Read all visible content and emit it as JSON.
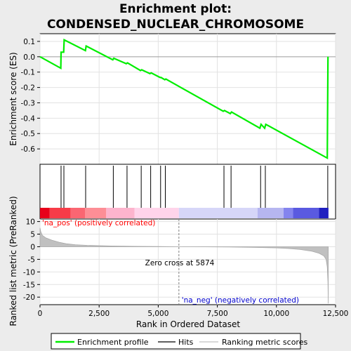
{
  "title_line1": "Enrichment plot:",
  "title_line2": "CONDENSED_NUCLEAR_CHROMOSOME",
  "colors": {
    "enrichment_line": "#00ee00",
    "hits": "#000000",
    "metric_fill": "#c0c0c0",
    "zero_line": "#808080",
    "pos_label": "#ff0000",
    "neg_label": "#0000cc"
  },
  "chart_data": [
    {
      "type": "line",
      "name": "enrichment-profile",
      "ylabel": "Enrichment score (ES)",
      "xlim": [
        0,
        12500
      ],
      "ylim": [
        -0.7,
        0.15
      ],
      "yticks": [
        "0.1",
        "0.0",
        "-0.1",
        "-0.2",
        "-0.3",
        "-0.4",
        "-0.5",
        "-0.6"
      ],
      "ytick_values": [
        0.1,
        0.0,
        -0.1,
        -0.2,
        -0.3,
        -0.4,
        -0.5,
        -0.6
      ],
      "x": [
        0,
        880,
        890,
        960,
        1000,
        1020,
        1920,
        1950,
        3080,
        3120,
        3650,
        3700,
        4250,
        4300,
        4650,
        4700,
        5080,
        5120,
        5280,
        5320,
        7750,
        7800,
        8050,
        8100,
        9300,
        9350,
        9500,
        9550,
        12150,
        12180
      ],
      "y": [
        0.0,
        -0.075,
        0.03,
        0.03,
        0.03,
        0.11,
        0.04,
        0.07,
        -0.02,
        -0.01,
        -0.045,
        -0.04,
        -0.09,
        -0.085,
        -0.11,
        -0.105,
        -0.135,
        -0.135,
        -0.15,
        -0.145,
        -0.355,
        -0.35,
        -0.37,
        -0.36,
        -0.465,
        -0.44,
        -0.465,
        -0.44,
        -0.66,
        0.0
      ],
      "grid": true
    },
    {
      "type": "scatter",
      "name": "hits",
      "x": [
        890,
        1010,
        1930,
        3100,
        3680,
        4280,
        4680,
        5100,
        5300,
        7780,
        8080,
        9330,
        9530,
        12170
      ]
    },
    {
      "type": "area",
      "name": "ranking-metric-scores",
      "xlabel": "Rank in Ordered Dataset",
      "ylabel": "Ranked list metric (PreRanked)",
      "xlim": [
        0,
        12500
      ],
      "ylim": [
        -23,
        11
      ],
      "yticks": [
        "10",
        "5",
        "0",
        "-5",
        "-10",
        "-15",
        "-20"
      ],
      "ytick_values": [
        10,
        5,
        0,
        -5,
        -10,
        -15,
        -20
      ],
      "xticks": [
        "0",
        "2,500",
        "5,000",
        "7,500",
        "10,000",
        "12,500"
      ],
      "xtick_values": [
        0,
        2500,
        5000,
        7500,
        10000,
        12500
      ],
      "x": [
        0,
        30,
        100,
        250,
        500,
        800,
        1100,
        1500,
        2000,
        3000,
        4000,
        5000,
        5874,
        7000,
        8000,
        9000,
        10000,
        10500,
        11000,
        11500,
        11800,
        12000,
        12100,
        12150,
        12180,
        12190
      ],
      "y": [
        7.5,
        6.0,
        4.5,
        3.5,
        2.6,
        1.8,
        1.2,
        0.8,
        0.55,
        0.3,
        0.15,
        0.07,
        0.0,
        -0.05,
        -0.12,
        -0.25,
        -0.45,
        -0.7,
        -1.1,
        -1.8,
        -2.6,
        -3.6,
        -5.0,
        -8.0,
        -14.0,
        -22.5
      ]
    }
  ],
  "heat_bar_segments": [
    {
      "from": 0,
      "to": 400,
      "color": "#e8001a"
    },
    {
      "from": 400,
      "to": 1300,
      "color": "#f73c48"
    },
    {
      "from": 1300,
      "to": 1900,
      "color": "#fa6672"
    },
    {
      "from": 1900,
      "to": 2800,
      "color": "#fd8e96"
    },
    {
      "from": 2800,
      "to": 4000,
      "color": "#fdb4cd"
    },
    {
      "from": 4000,
      "to": 5874,
      "color": "#ffd4ea"
    },
    {
      "from": 5874,
      "to": 9200,
      "color": "#d6d6f8"
    },
    {
      "from": 9200,
      "to": 10300,
      "color": "#b6b6f0"
    },
    {
      "from": 10300,
      "to": 10700,
      "color": "#8484ee"
    },
    {
      "from": 10700,
      "to": 11800,
      "color": "#5a5ae0"
    },
    {
      "from": 11800,
      "to": 12200,
      "color": "#2020c0"
    }
  ],
  "annotations": {
    "pos_label": "'na_pos' (positively correlated)",
    "neg_label": "'na_neg' (negatively correlated)",
    "zero_cross_label": "Zero cross at 5874",
    "zero_cross_value": 5874
  },
  "legend": {
    "enrichment_label": "Enrichment profile",
    "hits_label": "Hits",
    "metric_label": "Ranking metric scores"
  }
}
